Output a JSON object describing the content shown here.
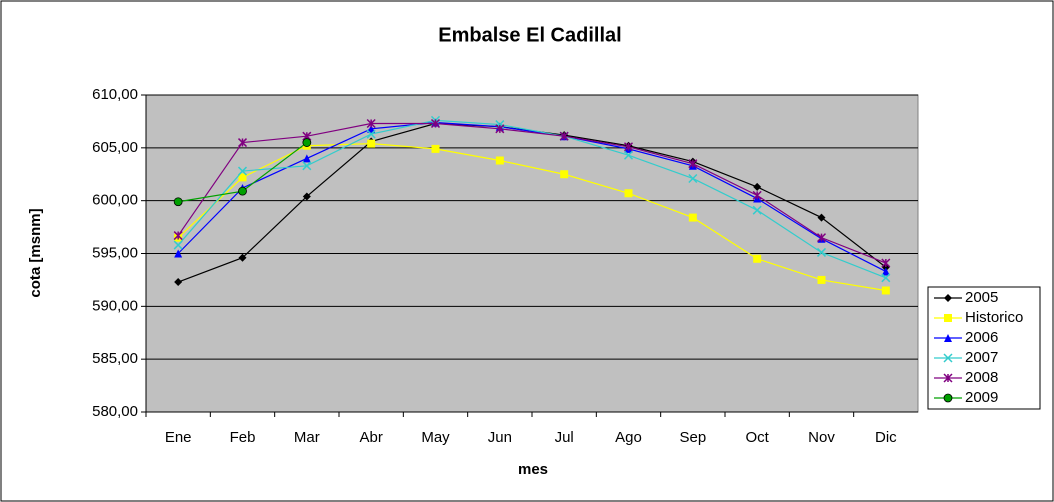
{
  "chart_data": {
    "type": "line",
    "title": "Embalse El Cadillal",
    "xlabel": "mes",
    "ylabel": "cota [msnm]",
    "categories": [
      "Ene",
      "Feb",
      "Mar",
      "Abr",
      "May",
      "Jun",
      "Jul",
      "Ago",
      "Sep",
      "Oct",
      "Nov",
      "Dic"
    ],
    "series": [
      {
        "name": "2005",
        "color": "#000000",
        "marker": "diamond",
        "values": [
          592.3,
          594.6,
          600.4,
          605.6,
          607.3,
          607.0,
          606.2,
          605.2,
          603.7,
          601.3,
          598.4,
          593.7
        ]
      },
      {
        "name": "Historico",
        "color": "#ffff00",
        "marker": "square",
        "values": [
          596.5,
          602.2,
          605.2,
          605.4,
          604.9,
          603.8,
          602.5,
          600.7,
          598.4,
          594.5,
          592.5,
          591.5
        ]
      },
      {
        "name": "2006",
        "color": "#0000ff",
        "marker": "triangle",
        "values": [
          595.0,
          601.2,
          604.0,
          606.8,
          607.4,
          607.0,
          606.1,
          604.9,
          603.3,
          600.2,
          596.4,
          593.3
        ]
      },
      {
        "name": "2007",
        "color": "#33cccc",
        "marker": "x",
        "values": [
          595.8,
          602.8,
          603.3,
          606.3,
          607.6,
          607.2,
          606.1,
          604.3,
          602.1,
          599.1,
          595.1,
          592.7
        ]
      },
      {
        "name": "2008",
        "color": "#800080",
        "marker": "star",
        "values": [
          596.7,
          605.5,
          606.1,
          607.3,
          607.3,
          606.8,
          606.1,
          605.1,
          603.5,
          600.5,
          596.5,
          594.1
        ]
      },
      {
        "name": "2009",
        "color": "#00a000",
        "marker": "circle",
        "values": [
          599.9,
          600.9,
          605.5,
          null,
          null,
          null,
          null,
          null,
          null,
          null,
          null,
          null
        ]
      }
    ],
    "ylim": [
      580,
      610
    ],
    "yticks": [
      {
        "value": 580,
        "label": "580,00"
      },
      {
        "value": 585,
        "label": "585,00"
      },
      {
        "value": 590,
        "label": "590,00"
      },
      {
        "value": 595,
        "label": "595,00"
      },
      {
        "value": 600,
        "label": "600,00"
      },
      {
        "value": 605,
        "label": "605,00"
      },
      {
        "value": 610,
        "label": "610,00"
      }
    ],
    "grid": true,
    "legend": "right"
  }
}
